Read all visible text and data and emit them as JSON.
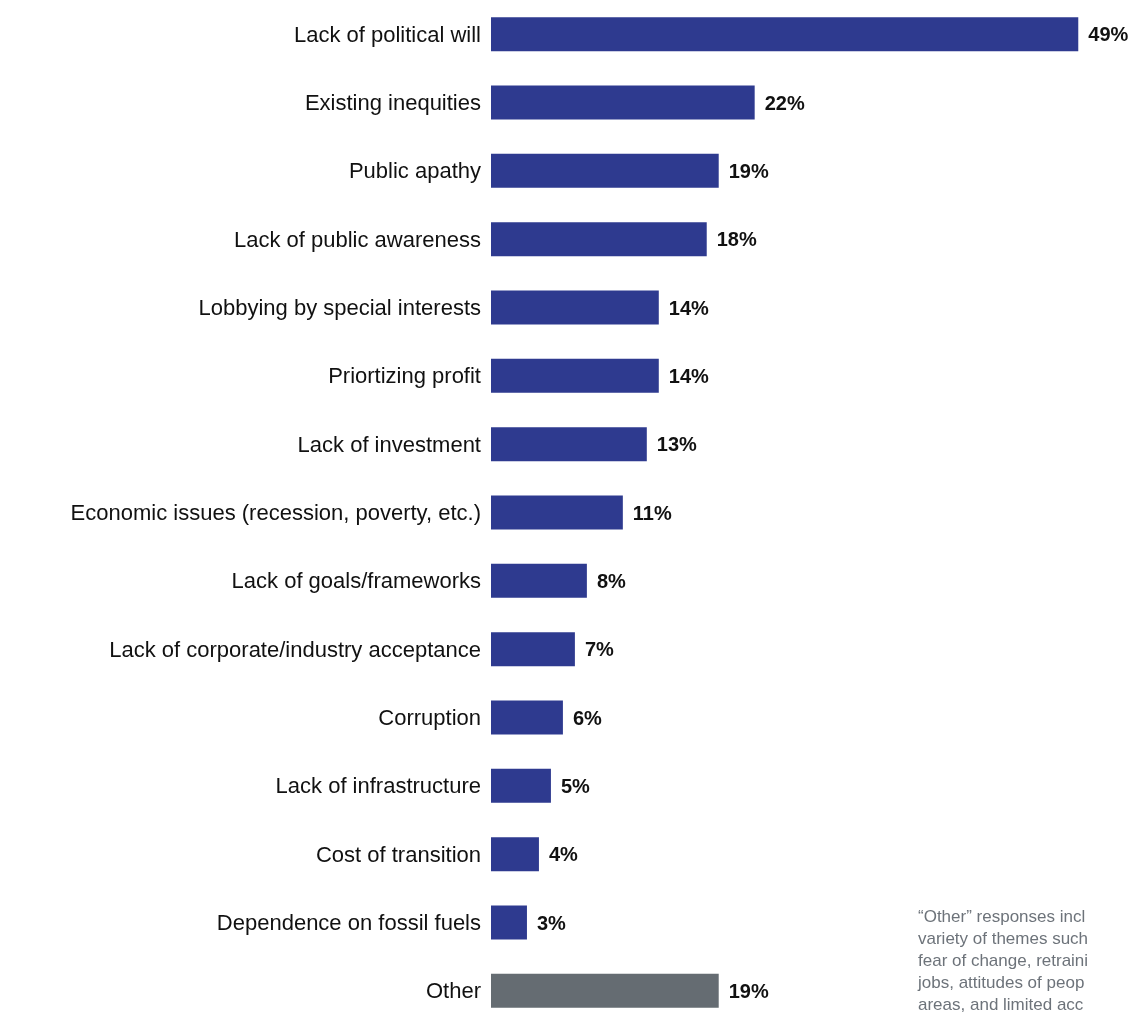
{
  "chart_data": {
    "type": "bar",
    "orientation": "horizontal",
    "value_labels": [
      "49%",
      "22%",
      "19%",
      "18%",
      "14%",
      "14%",
      "13%",
      "11%",
      "8%",
      "7%",
      "6%",
      "5%",
      "4%",
      "3%",
      "19%"
    ],
    "categories": [
      "Lack of political will",
      "Existing inequities",
      "Public apathy",
      "Lack of public awareness",
      "Lobbying by special interests",
      "Priortizing profit",
      "Lack of investment",
      "Economic issues (recession, poverty, etc.)",
      "Lack of goals/frameworks",
      "Lack of corporate/industry acceptance",
      "Corruption",
      "Lack of infrastructure",
      "Cost of transition",
      "Dependence on fossil fuels",
      "Other"
    ],
    "values": [
      49,
      22,
      19,
      18,
      14,
      14,
      13,
      11,
      8,
      7,
      6,
      5,
      4,
      3,
      19
    ],
    "colors": [
      "#2e3a8f",
      "#2e3a8f",
      "#2e3a8f",
      "#2e3a8f",
      "#2e3a8f",
      "#2e3a8f",
      "#2e3a8f",
      "#2e3a8f",
      "#2e3a8f",
      "#2e3a8f",
      "#2e3a8f",
      "#2e3a8f",
      "#2e3a8f",
      "#2e3a8f",
      "#656c72"
    ],
    "annotations": [
      "“Other” responses incl\nvariety of themes such\nfear of change, retraini\njobs, attitudes of peop\nareas, and limited acc"
    ]
  }
}
